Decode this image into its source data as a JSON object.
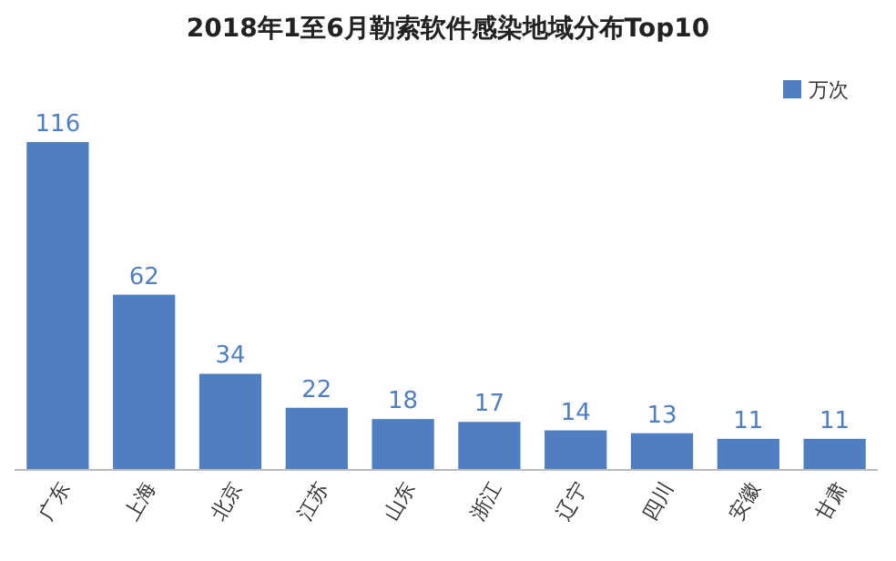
{
  "chart_data": {
    "type": "bar",
    "title": "2018年1至6月勒索软件感染地域分布Top10",
    "categories": [
      "广东",
      "上海",
      "北京",
      "江苏",
      "山东",
      "浙江",
      "辽宁",
      "四川",
      "安徽",
      "甘肃"
    ],
    "series": [
      {
        "name": "万次",
        "color": "#4f7fc0",
        "values": [
          116,
          62,
          34,
          22,
          18,
          17,
          14,
          13,
          11,
          11
        ]
      }
    ],
    "data_labels": true,
    "legend": "top right",
    "grid": false
  }
}
